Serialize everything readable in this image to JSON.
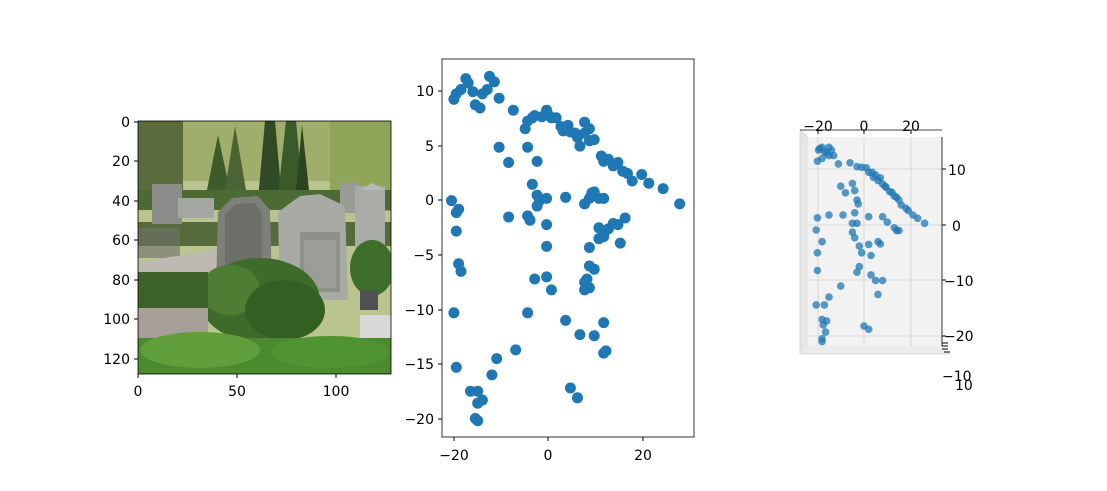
{
  "chart_data": [
    {
      "type": "image",
      "xlim": [
        0,
        128
      ],
      "ylim": [
        128,
        0
      ],
      "xticks": [
        "0",
        "50",
        "100"
      ],
      "yticks": [
        "0",
        "20",
        "40",
        "60",
        "80",
        "100",
        "120"
      ],
      "grid": false
    },
    {
      "type": "scatter",
      "xlim": [
        -22,
        31
      ],
      "ylim": [
        -21.7,
        13
      ],
      "xticks": [
        "−20",
        "0",
        "20"
      ],
      "yticks": [
        "10",
        "5",
        "0",
        "−5",
        "−10",
        "−15",
        "−20"
      ],
      "grid": false,
      "marker_color": "#1f77b4",
      "points": [
        [
          -19.5,
          9.3
        ],
        [
          -19.0,
          9.8
        ],
        [
          -18.0,
          10.2
        ],
        [
          -17.0,
          11.2
        ],
        [
          -16.5,
          10.8
        ],
        [
          -15.5,
          10.0
        ],
        [
          -15.0,
          8.8
        ],
        [
          -14.0,
          8.5
        ],
        [
          -13.5,
          9.8
        ],
        [
          -12.5,
          10.2
        ],
        [
          -12.0,
          11.4
        ],
        [
          -11.0,
          10.9
        ],
        [
          -10.0,
          9.4
        ],
        [
          -7.0,
          8.3
        ],
        [
          -4.5,
          6.6
        ],
        [
          -4.0,
          7.3
        ],
        [
          -3.0,
          7.6
        ],
        [
          -2.5,
          7.8
        ],
        [
          -1.0,
          7.7
        ],
        [
          0.0,
          8.3
        ],
        [
          0.5,
          7.8
        ],
        [
          1.0,
          7.6
        ],
        [
          2.0,
          7.6
        ],
        [
          3.0,
          6.8
        ],
        [
          3.5,
          6.4
        ],
        [
          4.5,
          6.9
        ],
        [
          5.0,
          6.3
        ],
        [
          6.0,
          6.2
        ],
        [
          6.5,
          5.8
        ],
        [
          7.0,
          5.0
        ],
        [
          8.0,
          6.2
        ],
        [
          8.0,
          7.2
        ],
        [
          9.0,
          5.5
        ],
        [
          9.0,
          6.6
        ],
        [
          10.0,
          5.6
        ],
        [
          11.5,
          4.1
        ],
        [
          12.0,
          3.6
        ],
        [
          13.0,
          3.8
        ],
        [
          14.0,
          3.2
        ],
        [
          15.0,
          3.5
        ],
        [
          16.0,
          2.7
        ],
        [
          17.0,
          2.5
        ],
        [
          18.0,
          1.8
        ],
        [
          20.0,
          2.4
        ],
        [
          21.5,
          1.6
        ],
        [
          24.5,
          1.1
        ],
        [
          28.0,
          -0.3
        ],
        [
          -10.0,
          4.9
        ],
        [
          -8.0,
          3.5
        ],
        [
          -4.0,
          4.9
        ],
        [
          -2.0,
          3.6
        ],
        [
          -3.0,
          1.5
        ],
        [
          -2.0,
          0.5
        ],
        [
          -1.5,
          0.0
        ],
        [
          -2.0,
          -0.5
        ],
        [
          0.0,
          0.2
        ],
        [
          4.0,
          0.3
        ],
        [
          8.0,
          -0.3
        ],
        [
          9.0,
          0.2
        ],
        [
          9.5,
          0.7
        ],
        [
          10.0,
          0.8
        ],
        [
          11.0,
          0.2
        ],
        [
          12.0,
          0.2
        ],
        [
          -20.0,
          0.0
        ],
        [
          -18.5,
          -0.8
        ],
        [
          -19.0,
          -1.1
        ],
        [
          -8.0,
          -1.5
        ],
        [
          -4.0,
          -1.4
        ],
        [
          -3.5,
          -1.8
        ],
        [
          0.0,
          -2.2
        ],
        [
          11.0,
          -2.5
        ],
        [
          12.0,
          -3.0
        ],
        [
          13.0,
          -2.6
        ],
        [
          14.0,
          -2.1
        ],
        [
          15.0,
          -2.2
        ],
        [
          16.5,
          -1.6
        ],
        [
          -19.0,
          -2.8
        ],
        [
          -18.5,
          -5.8
        ],
        [
          -18.0,
          -6.5
        ],
        [
          0.0,
          -4.2
        ],
        [
          12.0,
          -3.3
        ],
        [
          11.0,
          -3.5
        ],
        [
          15.5,
          -3.9
        ],
        [
          9.0,
          -4.3
        ],
        [
          -2.5,
          -7.2
        ],
        [
          0.0,
          -7.0
        ],
        [
          1.0,
          -8.2
        ],
        [
          8.0,
          -7.5
        ],
        [
          9.0,
          -6.0
        ],
        [
          10.0,
          -6.3
        ],
        [
          8.5,
          -7.2
        ],
        [
          9.0,
          -8.0
        ],
        [
          8.0,
          -8.2
        ],
        [
          -19.5,
          -10.3
        ],
        [
          -4.0,
          -10.3
        ],
        [
          4.0,
          -11.0
        ],
        [
          12.0,
          -11.2
        ],
        [
          7.0,
          -12.3
        ],
        [
          10.0,
          -12.4
        ],
        [
          12.0,
          -14.0
        ],
        [
          12.5,
          -13.8
        ],
        [
          -6.5,
          -13.7
        ],
        [
          -10.5,
          -14.5
        ],
        [
          -19.0,
          -15.3
        ],
        [
          -11.5,
          -16.0
        ],
        [
          -16.0,
          -17.5
        ],
        [
          -14.5,
          -17.5
        ],
        [
          -13.5,
          -18.3
        ],
        [
          -14.5,
          -18.6
        ],
        [
          5.0,
          -17.2
        ],
        [
          6.5,
          -18.1
        ],
        [
          -15.0,
          -20.0
        ],
        [
          -14.5,
          -20.2
        ]
      ]
    },
    {
      "type": "scatter3d",
      "xticks": [
        "−20",
        "0",
        "20"
      ],
      "yticks_right": [
        "10",
        "0",
        "−10",
        "−20"
      ],
      "zticks": [
        "−10",
        "10"
      ],
      "pane_color": "#f2f2f2",
      "marker_color": "#1f77b4",
      "points2d": [
        [
          -19.5,
          13.5
        ],
        [
          -19.0,
          13.8
        ],
        [
          -18.0,
          14.0
        ],
        [
          -17.0,
          13.2
        ],
        [
          -16.0,
          13.0
        ],
        [
          -15.0,
          14.0
        ],
        [
          -14.0,
          13.5
        ],
        [
          -13.0,
          12.5
        ],
        [
          -20.0,
          11.5
        ],
        [
          -18.0,
          12.0
        ],
        [
          -15.0,
          12.5
        ],
        [
          -11.0,
          11.0
        ],
        [
          -6.0,
          11.2
        ],
        [
          -3.0,
          10.5
        ],
        [
          -1.0,
          10.4
        ],
        [
          1.0,
          10.3
        ],
        [
          2.0,
          9.5
        ],
        [
          3.5,
          9.5
        ],
        [
          4.0,
          8.6
        ],
        [
          5.0,
          9.0
        ],
        [
          6.0,
          8.0
        ],
        [
          7.0,
          8.5
        ],
        [
          8.0,
          7.4
        ],
        [
          9.0,
          7.0
        ],
        [
          9.5,
          6.8
        ],
        [
          11.0,
          6.0
        ],
        [
          12.0,
          5.9
        ],
        [
          13.0,
          5.2
        ],
        [
          14.0,
          5.0
        ],
        [
          15.0,
          4.5
        ],
        [
          16.0,
          3.6
        ],
        [
          18.0,
          3.0
        ],
        [
          19.0,
          2.6
        ],
        [
          21.0,
          1.8
        ],
        [
          23.0,
          1.2
        ],
        [
          26.0,
          0.3
        ],
        [
          -10.0,
          7.0
        ],
        [
          -8.0,
          5.8
        ],
        [
          -5.0,
          7.5
        ],
        [
          -4.0,
          6.2
        ],
        [
          -3.0,
          4.5
        ],
        [
          -2.5,
          3.8
        ],
        [
          -4.0,
          2.2
        ],
        [
          -9.0,
          1.8
        ],
        [
          -20.0,
          1.3
        ],
        [
          -15.0,
          1.8
        ],
        [
          -5.0,
          0.3
        ],
        [
          -3.0,
          0.3
        ],
        [
          2.0,
          1.5
        ],
        [
          8.0,
          1.5
        ],
        [
          10.0,
          0.5
        ],
        [
          13.0,
          -0.5
        ],
        [
          14.0,
          -1.0
        ],
        [
          15.0,
          -1.0
        ],
        [
          -20.5,
          -0.9
        ],
        [
          -18.0,
          -3.0
        ],
        [
          -20.0,
          -5.0
        ],
        [
          -20.0,
          -8.2
        ],
        [
          -5.0,
          -1.3
        ],
        [
          -4.0,
          -2.3
        ],
        [
          -2.0,
          -3.8
        ],
        [
          -1.0,
          -5.0
        ],
        [
          6.0,
          -3.0
        ],
        [
          7.0,
          -3.4
        ],
        [
          2.0,
          -3.5
        ],
        [
          3.0,
          -5.5
        ],
        [
          -2.0,
          -7.5
        ],
        [
          -3.0,
          -8.5
        ],
        [
          3.0,
          -9.0
        ],
        [
          5.0,
          -10.0
        ],
        [
          8.0,
          -10.0
        ],
        [
          6.0,
          -12.5
        ],
        [
          -10.0,
          -11.0
        ],
        [
          -15.0,
          -13.0
        ],
        [
          -20.5,
          -14.4
        ],
        [
          -17.0,
          -14.4
        ],
        [
          -18.0,
          -17.0
        ],
        [
          -17.5,
          -18.0
        ],
        [
          -16.0,
          -17.3
        ],
        [
          -16.5,
          -19.3
        ],
        [
          0.0,
          -18.2
        ],
        [
          2.0,
          -18.8
        ],
        [
          -18.0,
          -21.0
        ],
        [
          -18.0,
          -20.5
        ]
      ]
    }
  ]
}
